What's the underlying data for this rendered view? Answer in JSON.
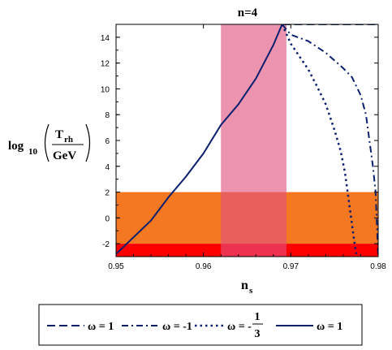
{
  "chart_data": {
    "type": "line",
    "title": "n=4",
    "xlabel": "n",
    "xlabel_sub": "s",
    "ylabel": {
      "prefix": "log",
      "prefix_sub": "10",
      "num": "T",
      "num_sub": "rh",
      "den": "GeV"
    },
    "xlim": [
      0.95,
      0.98
    ],
    "ylim": [
      -3,
      15
    ],
    "x_ticks": [
      0.95,
      0.96,
      0.97,
      0.98
    ],
    "x_tick_labels": [
      "0.95",
      "0.96",
      "0.97",
      "0.98"
    ],
    "y_ticks": [
      -2,
      0,
      2,
      4,
      6,
      8,
      10,
      12,
      14
    ],
    "y_tick_labels": [
      "-2",
      "0",
      "2",
      "4",
      "6",
      "8",
      "10",
      "12",
      "14"
    ],
    "grid": false,
    "bands": [
      {
        "name": "orange-band",
        "color": "#f47721",
        "x": [
          0.95,
          0.98
        ],
        "y": [
          -2,
          2
        ]
      },
      {
        "name": "red-band",
        "color": "#ff0000",
        "x": [
          0.95,
          0.98
        ],
        "y": [
          -3,
          -2
        ]
      },
      {
        "name": "pink-band",
        "color": "#e0507f",
        "opacity": 0.62,
        "x": [
          0.962,
          0.9695
        ],
        "y": [
          -3,
          15
        ]
      }
    ],
    "series": [
      {
        "key": "omega-1-dashed",
        "style": "dashed",
        "color": "#0a1f6e",
        "points": [
          [
            0.969,
            15.0
          ],
          [
            0.98,
            15.0
          ]
        ]
      },
      {
        "key": "omega-minus1-dashdot",
        "style": "dashdot",
        "color": "#0a1f6e",
        "points": [
          [
            0.969,
            15.0
          ],
          [
            0.97,
            14.2
          ],
          [
            0.972,
            13.7
          ],
          [
            0.974,
            12.8
          ],
          [
            0.976,
            11.6
          ],
          [
            0.977,
            10.9
          ],
          [
            0.978,
            9.5
          ],
          [
            0.9786,
            8.0
          ],
          [
            0.979,
            6.0
          ],
          [
            0.9794,
            4.0
          ],
          [
            0.9797,
            2.0
          ],
          [
            0.98,
            -3.0
          ]
        ]
      },
      {
        "key": "omega-minus-third-dotted",
        "style": "dotted",
        "color": "#0a1f6e",
        "points": [
          [
            0.969,
            15.0
          ],
          [
            0.97,
            13.5
          ],
          [
            0.971,
            12.5
          ],
          [
            0.972,
            11.5
          ],
          [
            0.973,
            10.2
          ],
          [
            0.974,
            8.8
          ],
          [
            0.975,
            6.8
          ],
          [
            0.9757,
            5.2
          ],
          [
            0.9762,
            3.5
          ],
          [
            0.9766,
            1.5
          ],
          [
            0.977,
            -0.5
          ],
          [
            0.9773,
            -2.0
          ],
          [
            0.9775,
            -2.8
          ]
        ]
      },
      {
        "key": "omega-1-solid",
        "style": "solid",
        "color": "#0a1f6e",
        "points": [
          [
            0.95,
            -2.8
          ],
          [
            0.952,
            -1.5
          ],
          [
            0.954,
            -0.2
          ],
          [
            0.956,
            1.6
          ],
          [
            0.958,
            3.2
          ],
          [
            0.96,
            5.0
          ],
          [
            0.962,
            7.2
          ],
          [
            0.964,
            8.8
          ],
          [
            0.966,
            10.8
          ],
          [
            0.968,
            13.4
          ],
          [
            0.969,
            15.0
          ]
        ]
      }
    ]
  },
  "legend": {
    "items": [
      {
        "style": "dashed",
        "label": "ω = 1"
      },
      {
        "style": "dashdot",
        "label": "ω = -1"
      },
      {
        "style": "dotted",
        "label": "ω = -",
        "frac_num": "1",
        "frac_den": "3"
      },
      {
        "style": "solid",
        "label": "ω = 1"
      }
    ]
  }
}
